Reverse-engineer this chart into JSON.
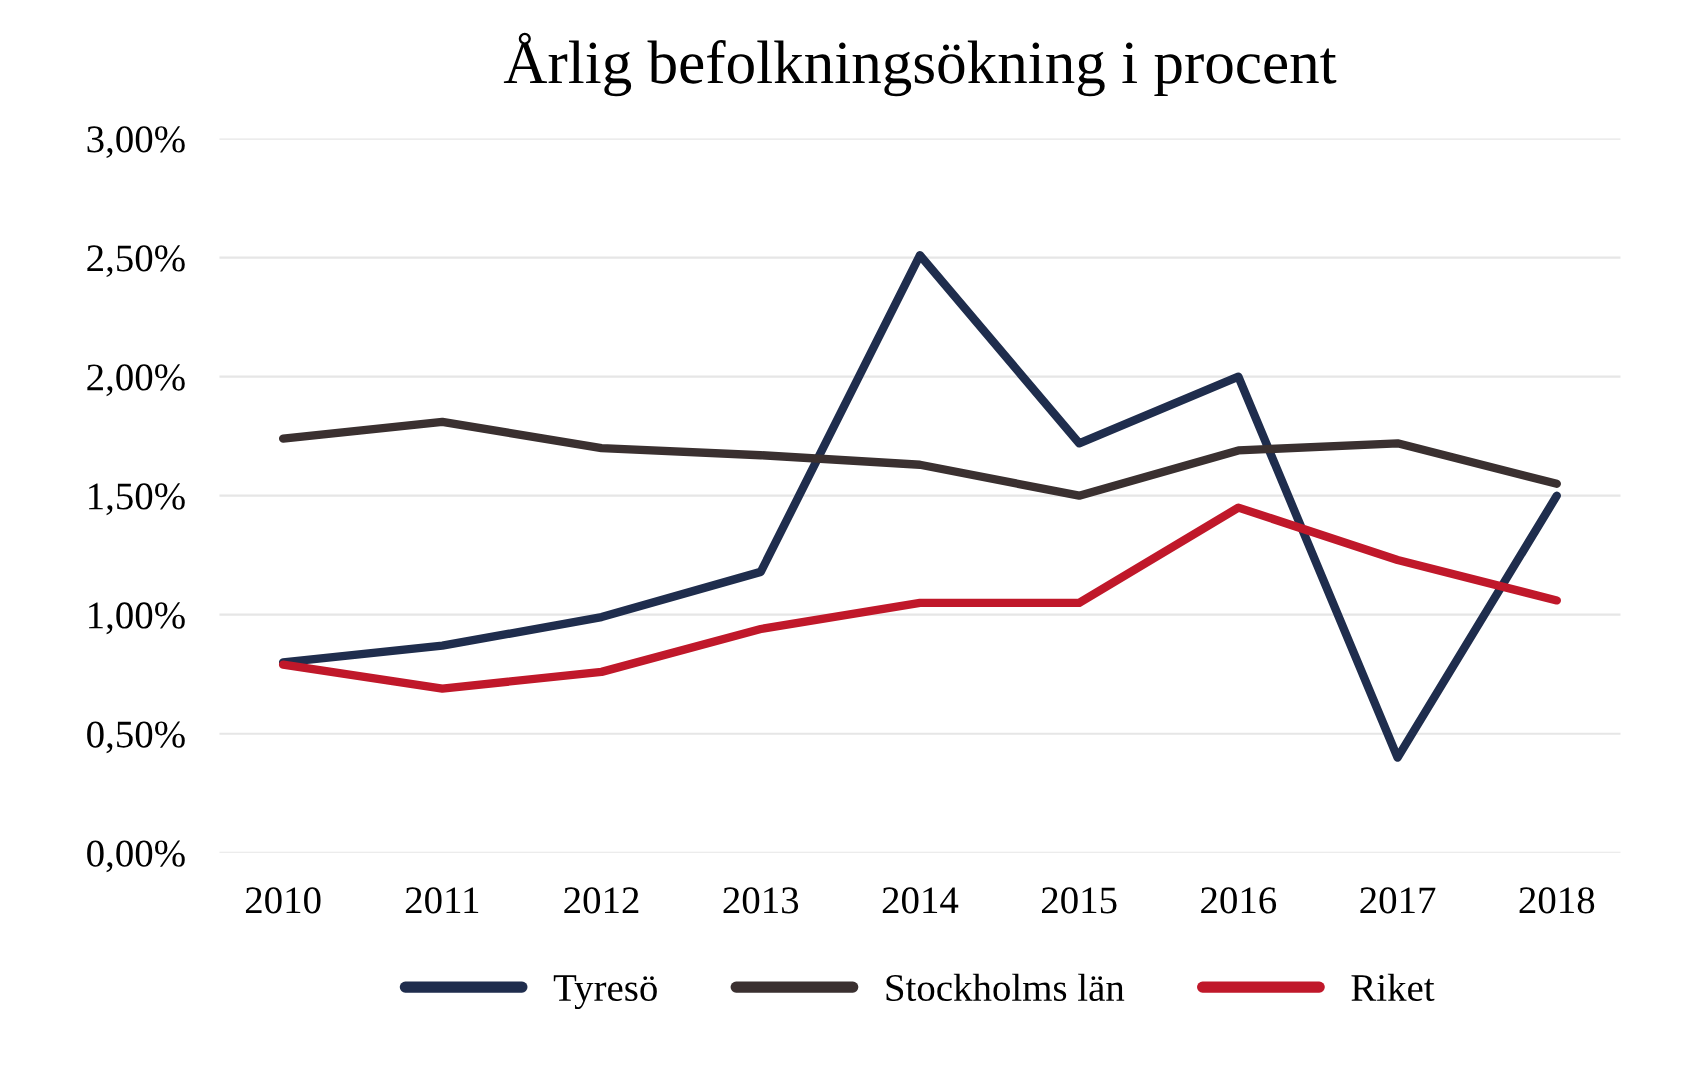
{
  "chart_data": {
    "type": "line",
    "title": "Årlig befolkningsökning i procent",
    "categories": [
      "2010",
      "2011",
      "2012",
      "2013",
      "2014",
      "2015",
      "2016",
      "2017",
      "2018"
    ],
    "series": [
      {
        "name": "Tyresö",
        "color": "#1f2d4d",
        "values": [
          0.8,
          0.87,
          0.99,
          1.18,
          2.51,
          1.72,
          2.0,
          0.4,
          1.5
        ]
      },
      {
        "name": "Stockholms län",
        "color": "#3a3030",
        "values": [
          1.74,
          1.81,
          1.7,
          1.67,
          1.63,
          1.5,
          1.69,
          1.72,
          1.55
        ]
      },
      {
        "name": "Riket",
        "color": "#c0182a",
        "values": [
          0.79,
          0.69,
          0.76,
          0.94,
          1.05,
          1.05,
          1.45,
          1.23,
          1.06
        ]
      }
    ],
    "ylim": [
      0,
      3
    ],
    "yticks": [
      {
        "value": 0,
        "label": "0,00%"
      },
      {
        "value": 0.5,
        "label": "0,50%"
      },
      {
        "value": 1,
        "label": "1,00%"
      },
      {
        "value": 1.5,
        "label": "1,50%"
      },
      {
        "value": 2,
        "label": "2,00%"
      },
      {
        "value": 2.5,
        "label": "2,50%"
      },
      {
        "value": 3,
        "label": "3,00%"
      }
    ],
    "grid": "y",
    "legend": "bottom",
    "marker": "none",
    "line_style": "solid"
  }
}
